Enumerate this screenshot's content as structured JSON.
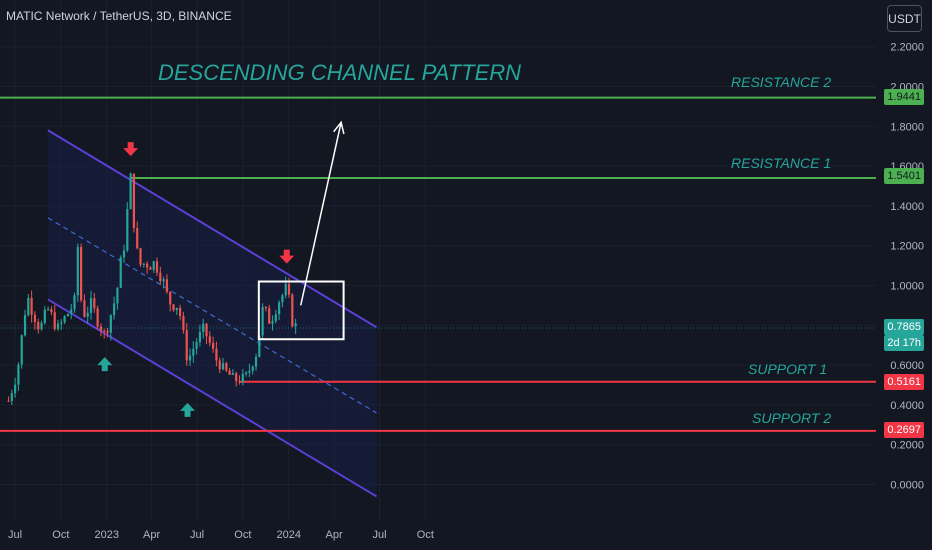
{
  "header": {
    "symbol_text": "MATIC Network / TetherUS, 3D, BINANCE",
    "unit_button": "USDT"
  },
  "annotations": {
    "title": "DESCENDING CHANNEL PATTERN",
    "resistance_2": "RESISTANCE 2",
    "resistance_1": "RESISTANCE 1",
    "support_1": "SUPPORT 1",
    "support_2": "SUPPORT 2"
  },
  "price_labels": {
    "resistance_2": "1.9441",
    "resistance_1": "1.5401",
    "current": "0.7865",
    "countdown": "2d 17h",
    "support_1": "0.5161",
    "support_2": "0.2697"
  },
  "colors": {
    "background": "#131722",
    "up": "#26a69a",
    "down": "#ef5350",
    "resistance": "#4caf50",
    "support": "#f23645",
    "channel": "#5b3fd6",
    "annotation_text": "#26a69a"
  },
  "chart_data": {
    "type": "candlestick",
    "title": "DESCENDING CHANNEL PATTERN",
    "y_ticks": [
      "2.2000",
      "2.0000",
      "1.8000",
      "1.6000",
      "1.4000",
      "1.2000",
      "1.0000",
      "0.8000",
      "0.6000",
      "0.4000",
      "0.2000",
      "0.0000"
    ],
    "x_ticks": [
      "Jul",
      "Oct",
      "2023",
      "Apr",
      "Jul",
      "Oct",
      "2024",
      "Apr",
      "Jul",
      "Oct"
    ],
    "ylim": [
      -0.1,
      2.25
    ],
    "horizontal_levels": [
      {
        "name": "RESISTANCE 2",
        "value": 1.9441
      },
      {
        "name": "RESISTANCE 1",
        "value": 1.5401
      },
      {
        "name": "SUPPORT 1",
        "value": 0.5161
      },
      {
        "name": "SUPPORT 2",
        "value": 0.2697
      }
    ],
    "current_price": 0.7865,
    "price_path": [
      {
        "date": "2022-06-18",
        "value": 0.42
      },
      {
        "date": "2022-07-05",
        "value": 0.55
      },
      {
        "date": "2022-07-25",
        "value": 0.95
      },
      {
        "date": "2022-08-20",
        "value": 0.78
      },
      {
        "date": "2022-09-05",
        "value": 0.88
      },
      {
        "date": "2022-09-25",
        "value": 0.78
      },
      {
        "date": "2022-10-15",
        "value": 0.86
      },
      {
        "date": "2022-10-30",
        "value": 0.92
      },
      {
        "date": "2022-11-05",
        "value": 1.25
      },
      {
        "date": "2022-11-12",
        "value": 0.85
      },
      {
        "date": "2022-12-01",
        "value": 0.9
      },
      {
        "date": "2022-12-28",
        "value": 0.75
      },
      {
        "date": "2023-01-20",
        "value": 0.95
      },
      {
        "date": "2023-02-05",
        "value": 1.22
      },
      {
        "date": "2023-02-18",
        "value": 1.52
      },
      {
        "date": "2023-03-05",
        "value": 1.1
      },
      {
        "date": "2023-03-25",
        "value": 1.12
      },
      {
        "date": "2023-04-15",
        "value": 1.1
      },
      {
        "date": "2023-05-05",
        "value": 0.92
      },
      {
        "date": "2023-05-25",
        "value": 0.9
      },
      {
        "date": "2023-06-12",
        "value": 0.62
      },
      {
        "date": "2023-06-30",
        "value": 0.72
      },
      {
        "date": "2023-07-15",
        "value": 0.78
      },
      {
        "date": "2023-08-10",
        "value": 0.62
      },
      {
        "date": "2023-08-30",
        "value": 0.56
      },
      {
        "date": "2023-09-20",
        "value": 0.52
      },
      {
        "date": "2023-10-10",
        "value": 0.55
      },
      {
        "date": "2023-10-28",
        "value": 0.66
      },
      {
        "date": "2023-11-10",
        "value": 0.88
      },
      {
        "date": "2023-11-25",
        "value": 0.82
      },
      {
        "date": "2023-12-10",
        "value": 0.92
      },
      {
        "date": "2023-12-28",
        "value": 0.98
      },
      {
        "date": "2024-01-10",
        "value": 0.8
      },
      {
        "date": "2024-01-20",
        "value": 0.7865
      }
    ],
    "channel": {
      "upper": [
        {
          "date": "2022-09-05",
          "value": 1.78
        },
        {
          "date": "2024-06-25",
          "value": 0.79
        }
      ],
      "mid": [
        {
          "date": "2022-09-05",
          "value": 1.34
        },
        {
          "date": "2024-06-25",
          "value": 0.36
        }
      ],
      "lower": [
        {
          "date": "2022-09-05",
          "value": 0.93
        },
        {
          "date": "2024-06-25",
          "value": -0.06
        }
      ]
    },
    "breakout_box": {
      "date_from": "2023-11-02",
      "date_to": "2024-04-20",
      "value_from": 0.73,
      "value_to": 1.02
    },
    "projection_arrow": {
      "from": {
        "date": "2024-01-25",
        "value": 0.9
      },
      "to": {
        "date": "2024-04-15",
        "value": 1.82
      }
    },
    "markers": [
      {
        "type": "down",
        "date": "2023-02-18",
        "value": 1.66
      },
      {
        "type": "up",
        "date": "2022-12-28",
        "value": 0.63
      },
      {
        "type": "up",
        "date": "2023-06-12",
        "value": 0.4
      },
      {
        "type": "down",
        "date": "2023-12-28",
        "value": 1.12
      }
    ]
  }
}
